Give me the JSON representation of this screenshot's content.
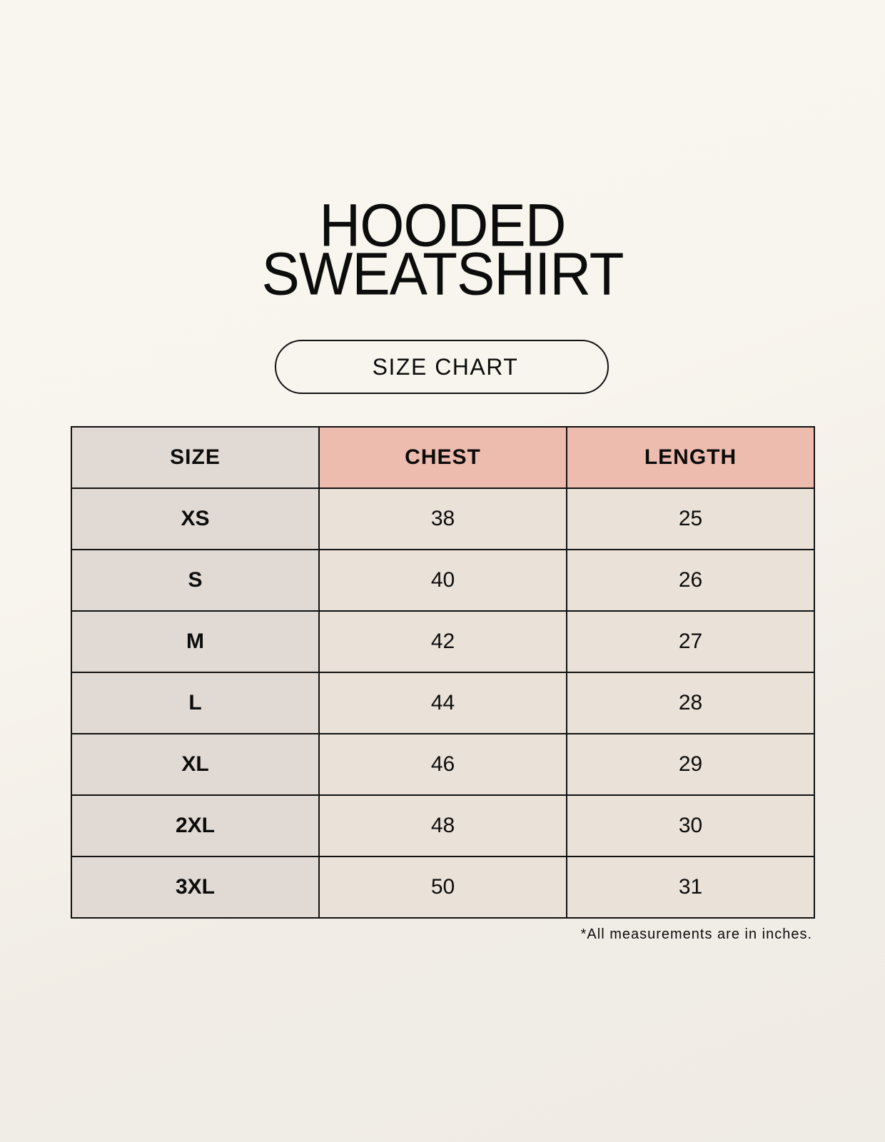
{
  "title_lines": [
    "HOODED",
    "SWEATSHIRT"
  ],
  "subtitle": "SIZE CHART",
  "colors": {
    "size_column": "#e1d9d3",
    "header_accent": "#edbcae",
    "value_cells": "#eae2d8"
  },
  "table": {
    "headers": [
      "SIZE",
      "CHEST",
      "LENGTH"
    ],
    "rows": [
      [
        "XS",
        "38",
        "25"
      ],
      [
        "S",
        "40",
        "26"
      ],
      [
        "M",
        "42",
        "27"
      ],
      [
        "L",
        "44",
        "28"
      ],
      [
        "XL",
        "46",
        "29"
      ],
      [
        "2XL",
        "48",
        "30"
      ],
      [
        "3XL",
        "50",
        "31"
      ]
    ]
  },
  "footnote": "*All measurements are in inches."
}
